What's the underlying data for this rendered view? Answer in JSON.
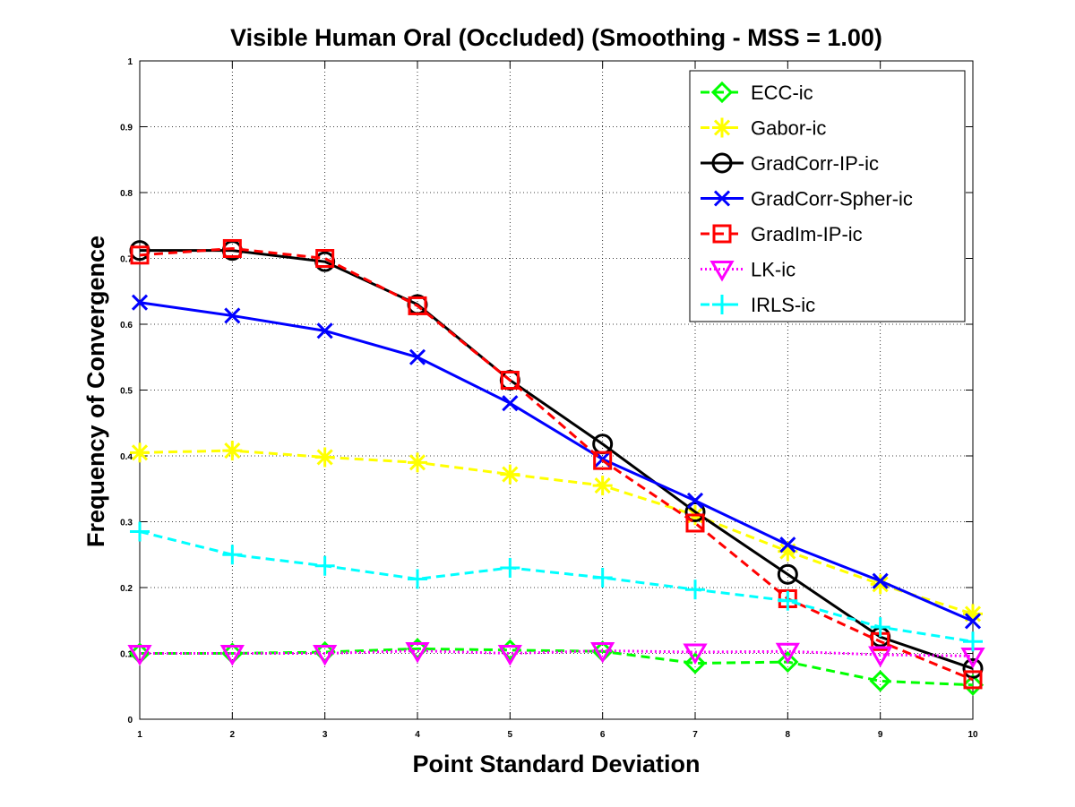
{
  "chart_data": {
    "type": "line",
    "title": "Visible Human Oral (Occluded) (Smoothing - MSS = 1.00)",
    "xlabel": "Point Standard Deviation",
    "ylabel": "Frequency of Convergence",
    "xlim": [
      1,
      10
    ],
    "ylim": [
      0,
      1
    ],
    "grid": true,
    "legend_position": "top-right",
    "x": [
      1,
      2,
      3,
      4,
      5,
      6,
      7,
      8,
      9,
      10
    ],
    "x_ticks": [
      "1",
      "2",
      "3",
      "4",
      "5",
      "6",
      "7",
      "8",
      "9",
      "10"
    ],
    "y_ticks": [
      "0",
      "0.1",
      "0.2",
      "0.3",
      "0.4",
      "0.5",
      "0.6",
      "0.7",
      "0.8",
      "0.9",
      "1"
    ],
    "series": [
      {
        "name": "ECC-ic",
        "color": "#00ff00",
        "marker": "diamond",
        "dash": "dashed",
        "values": [
          0.1,
          0.1,
          0.102,
          0.107,
          0.105,
          0.103,
          0.085,
          0.087,
          0.058,
          0.052
        ]
      },
      {
        "name": "Gabor-ic",
        "color": "#ffff00",
        "marker": "asterisk",
        "dash": "dashed",
        "values": [
          0.405,
          0.408,
          0.398,
          0.39,
          0.372,
          0.355,
          0.31,
          0.255,
          0.205,
          0.16
        ]
      },
      {
        "name": "GradCorr-IP-ic",
        "color": "#000000",
        "marker": "circle",
        "dash": "solid",
        "values": [
          0.712,
          0.712,
          0.695,
          0.63,
          0.515,
          0.418,
          0.315,
          0.22,
          0.125,
          0.077
        ]
      },
      {
        "name": "GradCorr-Spher-ic",
        "color": "#0000ff",
        "marker": "x",
        "dash": "solid",
        "values": [
          0.633,
          0.613,
          0.59,
          0.55,
          0.48,
          0.395,
          0.332,
          0.265,
          0.21,
          0.149
        ]
      },
      {
        "name": "GradIm-IP-ic",
        "color": "#ff0000",
        "marker": "square",
        "dash": "dashed",
        "values": [
          0.705,
          0.715,
          0.7,
          0.628,
          0.515,
          0.393,
          0.298,
          0.183,
          0.118,
          0.06
        ]
      },
      {
        "name": "LK-ic",
        "color": "#ff00ff",
        "marker": "triangle-down",
        "dash": "dotted",
        "values": [
          0.1,
          0.1,
          0.1,
          0.104,
          0.1,
          0.104,
          0.102,
          0.103,
          0.098,
          0.096
        ]
      },
      {
        "name": "IRLS-ic",
        "color": "#00ffff",
        "marker": "plus",
        "dash": "dashed",
        "values": [
          0.285,
          0.25,
          0.233,
          0.213,
          0.23,
          0.215,
          0.197,
          0.18,
          0.14,
          0.118
        ]
      }
    ]
  }
}
